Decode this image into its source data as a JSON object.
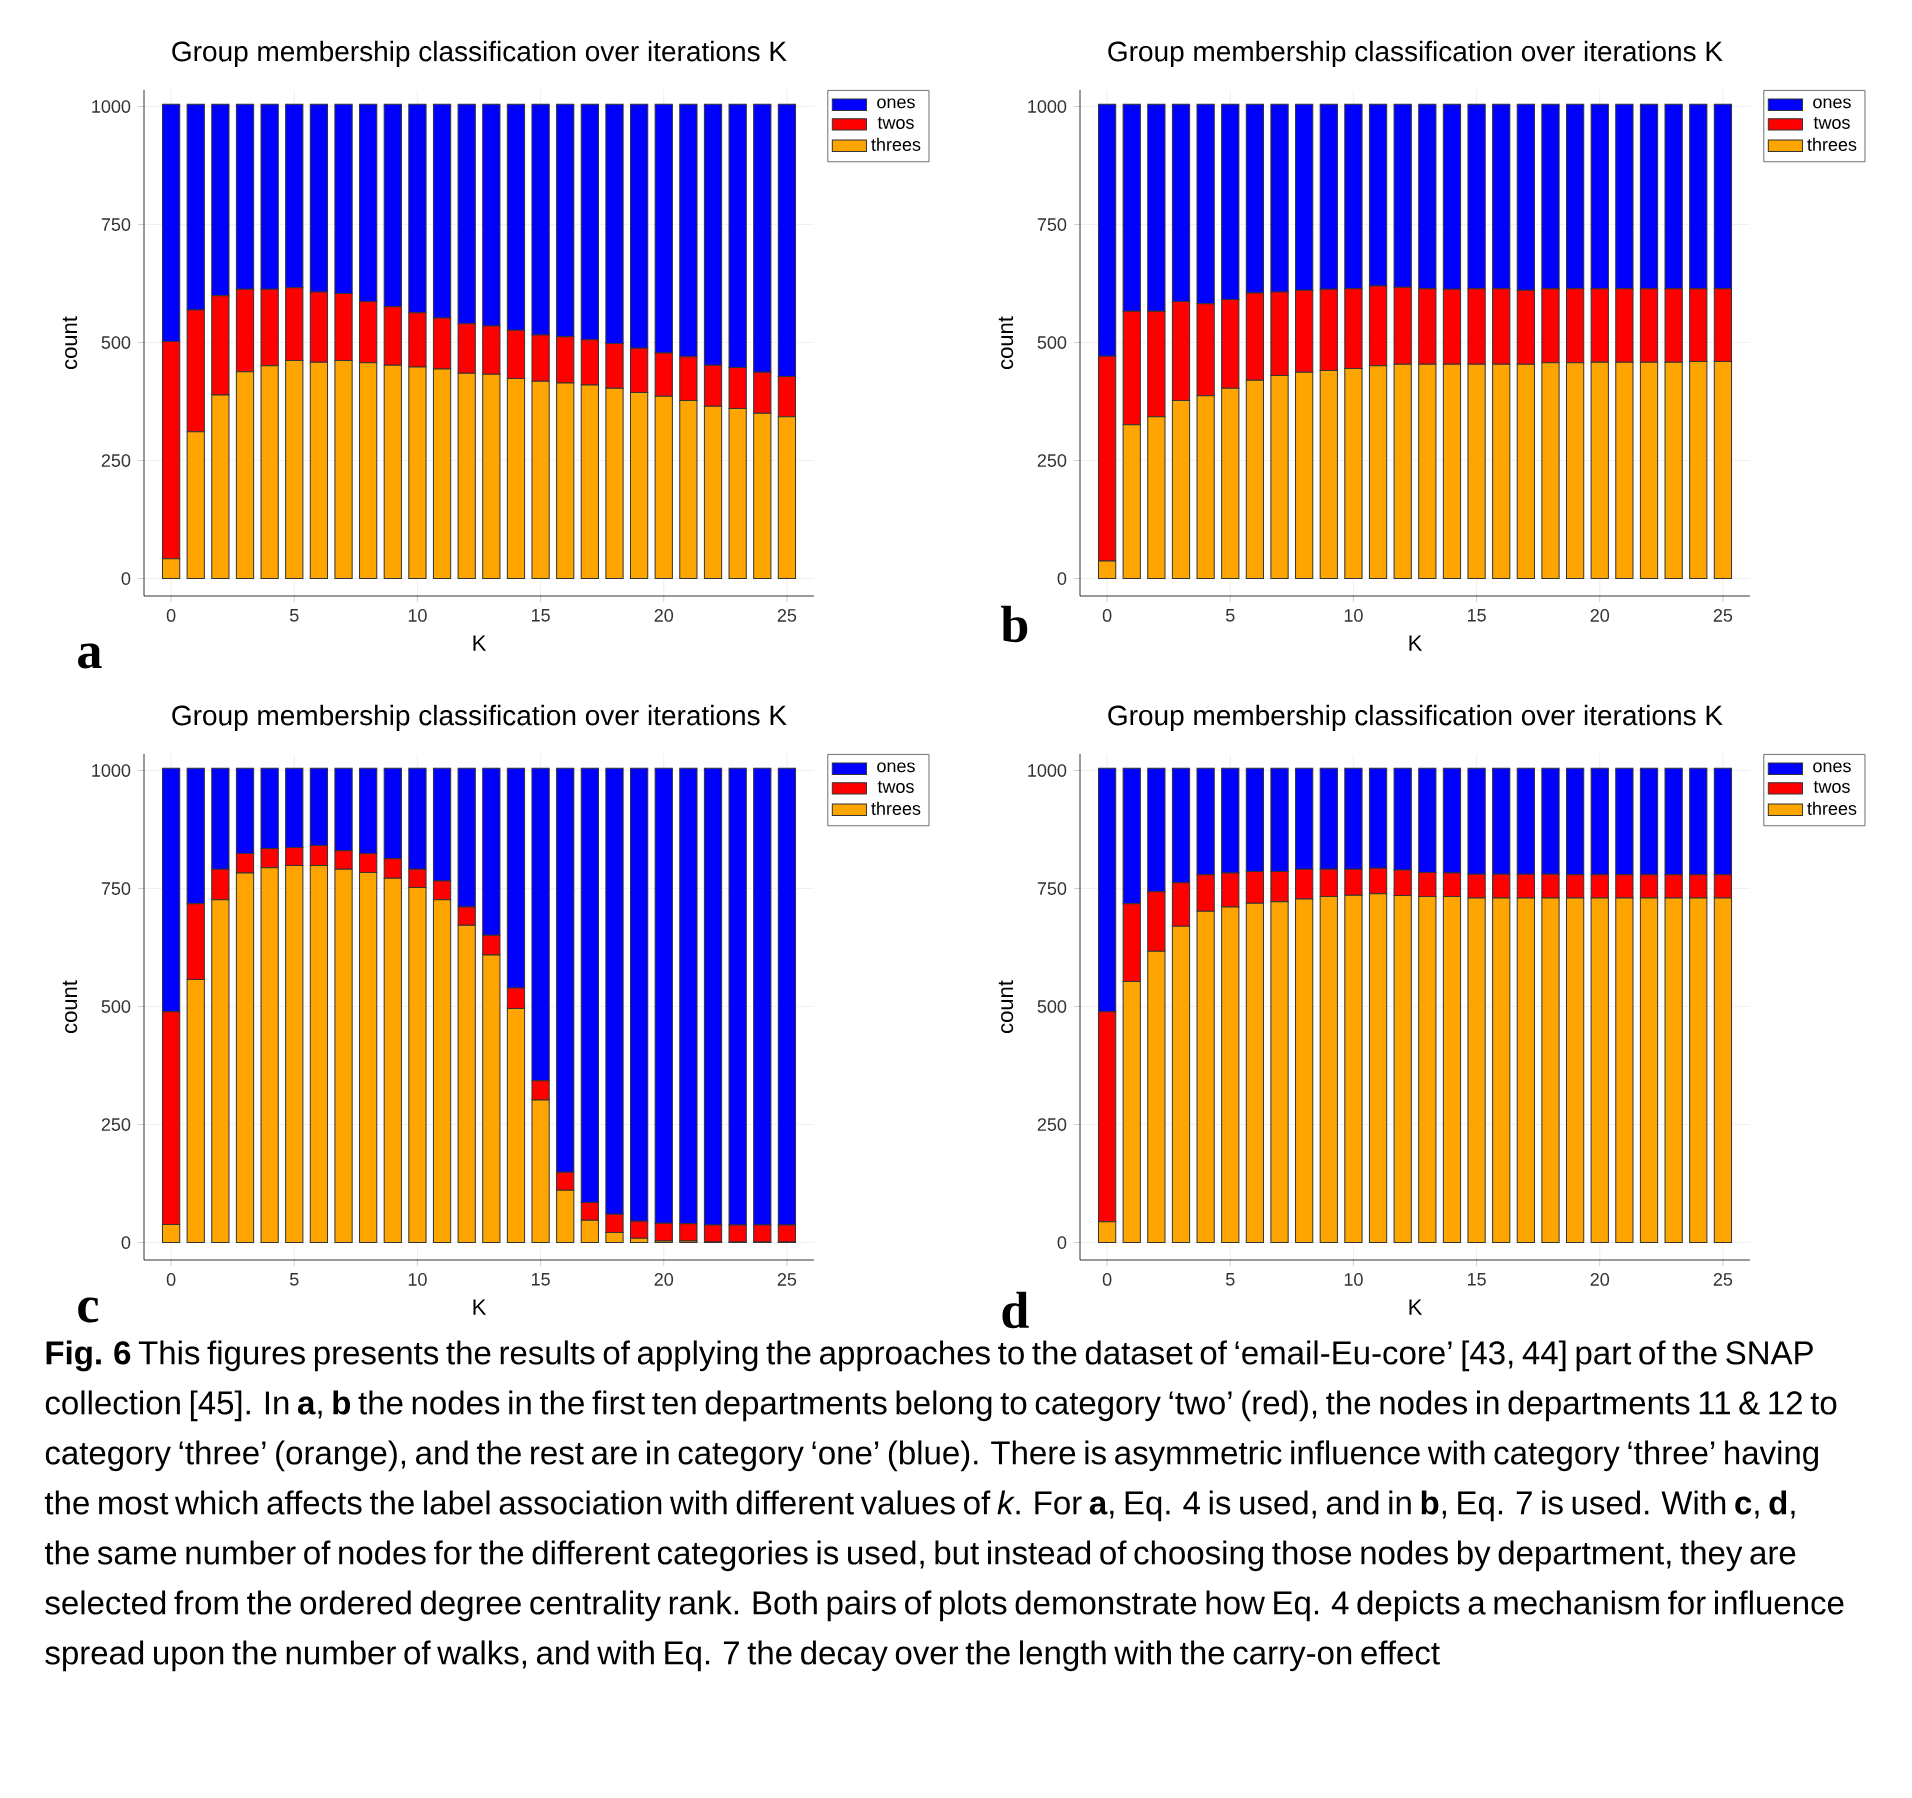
{
  "chart_data": [
    {
      "type": "bar",
      "stacked": true,
      "title": "Group membership classification over iterations K",
      "xlabel": "K",
      "ylabel": "count",
      "x": [
        0,
        1,
        2,
        3,
        4,
        5,
        6,
        7,
        8,
        9,
        10,
        11,
        12,
        13,
        14,
        15,
        16,
        17,
        18,
        19,
        20,
        21,
        22,
        23,
        24,
        25
      ],
      "xlim": [
        -1.1,
        26.1
      ],
      "ylim": [
        -37,
        1035
      ],
      "xticks": [
        0,
        5,
        10,
        15,
        20,
        25
      ],
      "yticks": [
        0,
        250,
        500,
        750,
        1000
      ],
      "grid": true,
      "legend": "top right",
      "annotations": [
        "a"
      ],
      "series": [
        {
          "name": "threes",
          "color": "#ffa500",
          "values": [
            42,
            311,
            389,
            438,
            451,
            462,
            458,
            462,
            457,
            452,
            448,
            444,
            435,
            433,
            424,
            418,
            414,
            410,
            403,
            394,
            386,
            377,
            365,
            360,
            350,
            343
          ]
        },
        {
          "name": "twos",
          "color": "#ff0000",
          "values": [
            460,
            258,
            210,
            175,
            162,
            154,
            149,
            142,
            130,
            124,
            115,
            108,
            105,
            102,
            102,
            98,
            98,
            96,
            95,
            94,
            92,
            93,
            87,
            87,
            87,
            85
          ]
        },
        {
          "name": "ones",
          "color": "#0000ff",
          "values": [
            503,
            436,
            406,
            392,
            392,
            389,
            398,
            401,
            418,
            429,
            442,
            453,
            465,
            470,
            479,
            489,
            493,
            499,
            507,
            517,
            527,
            535,
            553,
            558,
            568,
            577
          ]
        }
      ]
    },
    {
      "type": "bar",
      "stacked": true,
      "title": "Group membership classification over iterations K",
      "xlabel": "K",
      "ylabel": "count",
      "x": [
        0,
        1,
        2,
        3,
        4,
        5,
        6,
        7,
        8,
        9,
        10,
        11,
        12,
        13,
        14,
        15,
        16,
        17,
        18,
        19,
        20,
        21,
        22,
        23,
        24,
        25
      ],
      "xlim": [
        -1.1,
        26.1
      ],
      "ylim": [
        -37,
        1035
      ],
      "xticks": [
        0,
        5,
        10,
        15,
        20,
        25
      ],
      "yticks": [
        0,
        250,
        500,
        750,
        1000
      ],
      "grid": true,
      "legend": "top right",
      "annotations": [
        "b"
      ],
      "series": [
        {
          "name": "threes",
          "color": "#ffa500",
          "values": [
            37,
            326,
            343,
            377,
            387,
            403,
            420,
            430,
            437,
            441,
            445,
            451,
            454,
            454,
            454,
            454,
            454,
            454,
            457,
            457,
            458,
            458,
            458,
            458,
            460,
            460
          ]
        },
        {
          "name": "twos",
          "color": "#ff0000",
          "values": [
            434,
            240,
            223,
            210,
            195,
            188,
            185,
            177,
            174,
            172,
            169,
            169,
            163,
            160,
            159,
            160,
            160,
            157,
            157,
            157,
            156,
            156,
            156,
            156,
            154,
            154
          ]
        },
        {
          "name": "ones",
          "color": "#0000ff",
          "values": [
            534,
            439,
            439,
            418,
            423,
            414,
            400,
            398,
            394,
            392,
            391,
            385,
            388,
            391,
            392,
            391,
            391,
            394,
            391,
            391,
            391,
            391,
            391,
            391,
            391,
            391
          ]
        }
      ]
    },
    {
      "type": "bar",
      "stacked": true,
      "title": "Group membership classification over iterations K",
      "xlabel": "K",
      "ylabel": "count",
      "x": [
        0,
        1,
        2,
        3,
        4,
        5,
        6,
        7,
        8,
        9,
        10,
        11,
        12,
        13,
        14,
        15,
        16,
        17,
        18,
        19,
        20,
        21,
        22,
        23,
        24,
        25
      ],
      "xlim": [
        -1.1,
        26.1
      ],
      "ylim": [
        -37,
        1035
      ],
      "xticks": [
        0,
        5,
        10,
        15,
        20,
        25
      ],
      "yticks": [
        0,
        250,
        500,
        750,
        1000
      ],
      "grid": true,
      "legend": "top right",
      "annotations": [
        "c"
      ],
      "series": [
        {
          "name": "threes",
          "color": "#ffa500",
          "values": [
            38,
            557,
            726,
            783,
            794,
            799,
            799,
            791,
            784,
            772,
            752,
            726,
            672,
            609,
            496,
            302,
            111,
            47,
            21,
            9,
            3,
            3,
            1,
            1,
            1,
            1
          ]
        },
        {
          "name": "twos",
          "color": "#ff0000",
          "values": [
            451,
            161,
            65,
            41,
            41,
            38,
            42,
            39,
            40,
            41,
            39,
            40,
            39,
            42,
            43,
            41,
            38,
            38,
            39,
            36,
            38,
            37,
            36,
            36,
            36,
            36
          ]
        },
        {
          "name": "ones",
          "color": "#0000ff",
          "values": [
            516,
            287,
            214,
            181,
            170,
            168,
            164,
            175,
            181,
            192,
            214,
            239,
            294,
            354,
            466,
            662,
            856,
            920,
            945,
            960,
            964,
            965,
            968,
            968,
            968,
            968
          ]
        }
      ]
    },
    {
      "type": "bar",
      "stacked": true,
      "title": "Group membership classification over iterations K",
      "xlabel": "K",
      "ylabel": "count",
      "x": [
        0,
        1,
        2,
        3,
        4,
        5,
        6,
        7,
        8,
        9,
        10,
        11,
        12,
        13,
        14,
        15,
        16,
        17,
        18,
        19,
        20,
        21,
        22,
        23,
        24,
        25
      ],
      "xlim": [
        -1.1,
        26.1
      ],
      "ylim": [
        -37,
        1035
      ],
      "xticks": [
        0,
        5,
        10,
        15,
        20,
        25
      ],
      "yticks": [
        0,
        250,
        500,
        750,
        1000
      ],
      "grid": true,
      "legend": "top right",
      "annotations": [
        "d",
        "**Fig. 6**  This figures presents the results of applying the approaches to the dataset of ‘email-Eu-core’ [43, 44] part of the SNAP collection [45]. In **a**, **b** the nodes in the first ten departments belong to category ‘two’ (red), the nodes in departments 11 & 12 to category ‘three’ (orange), and the rest are in category ‘one’ (blue). There is asymmetric influence with category ‘three’ having the most which affects the label association with different values of *k*. For **a**, Eq. 4 is used, and in **b**, Eq. 7 is used. With **c**, **d**, the same number of nodes for the different categories is used, but instead of choosing those nodes by department, they are selected from the ordered degree centrality rank. Both pairs of plots demonstrate how Eq. 4 depicts a mechanism for influence spread upon the number of walks, and with Eq. 7 the decay over the length with the carry-on effect"
      ],
      "series": [
        {
          "name": "threes",
          "color": "#ffa500",
          "values": [
            44,
            553,
            617,
            670,
            702,
            711,
            719,
            722,
            728,
            733,
            736,
            739,
            735,
            733,
            733,
            730,
            730,
            730,
            730,
            730,
            730,
            730,
            730,
            730,
            730,
            730
          ]
        },
        {
          "name": "twos",
          "color": "#ff0000",
          "values": [
            445,
            165,
            126,
            92,
            77,
            72,
            67,
            64,
            63,
            58,
            55,
            54,
            54,
            51,
            50,
            50,
            50,
            50,
            50,
            49,
            49,
            49,
            49,
            49,
            49,
            49
          ]
        },
        {
          "name": "ones",
          "color": "#0000ff",
          "values": [
            516,
            287,
            262,
            243,
            226,
            222,
            219,
            219,
            214,
            214,
            214,
            212,
            216,
            221,
            222,
            225,
            225,
            225,
            225,
            226,
            226,
            226,
            226,
            226,
            226,
            226
          ]
        }
      ]
    }
  ]
}
